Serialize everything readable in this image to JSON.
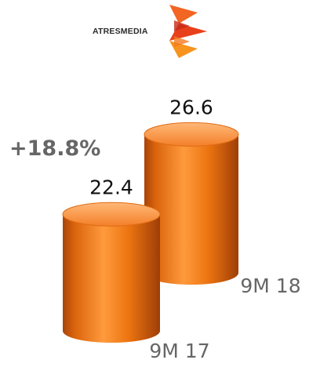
{
  "brand": {
    "logo_text": "ATRESMEDIA"
  },
  "chart_data": {
    "type": "bar",
    "categories": [
      "9M 17",
      "9M 18"
    ],
    "values": [
      22.4,
      26.6
    ],
    "value_labels": [
      "22.4",
      "26.6"
    ],
    "annotation": "+18.8%",
    "bar_color": "#F07A10",
    "title": "",
    "xlabel": "",
    "ylabel": ""
  },
  "colors": {
    "accent": "#F07A10",
    "annotation": "#666666",
    "category_label": "#666666",
    "value_label": "#111111"
  }
}
